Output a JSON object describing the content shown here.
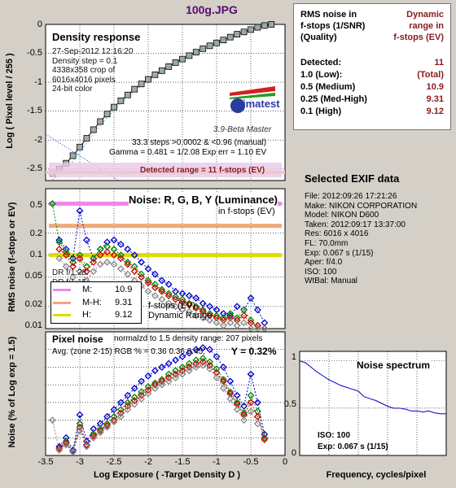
{
  "title": "100g.JPG",
  "density_panel": {
    "title": "Density response",
    "info": [
      "27-Sep-2012 12:16:20",
      "Density step = 0.1",
      "4338x358 crop of",
      "6016x4016 pixels",
      "24-bit color"
    ],
    "steps_line": "33.3 steps >0.0002 & <0.96 (manual)",
    "gamma_line": "Gamma = 0.481 = 1/2.08  Exp err = 1.10 EV",
    "detected_range": "Detected range = 11 f-stops (EV)",
    "logo_text": "imatest",
    "version": "3.9-Beta  Master",
    "ylabel": "Log ( Pixel level / 255 )",
    "yticks": [
      "0",
      "-0.5",
      "-1",
      "-1.5",
      "-2",
      "-2.5"
    ]
  },
  "noise_panel": {
    "title": "Noise: R, G, B, Y (Luminance)",
    "subtitle": "in f-stops (EV)",
    "ylabel": "RMS noise (f-stops or EV)",
    "yticks": [
      "0.5",
      "0.2",
      "0.1",
      "0.05",
      "0.02",
      "0.01"
    ],
    "dr_labels": [
      "DR f/1:28:",
      "DR f/1:15:"
    ],
    "legend": [
      {
        "label": "M:",
        "value": "10.9",
        "color": "#ee88ee"
      },
      {
        "label": "M-H:",
        "value": "9.31",
        "color": "#f0a878"
      },
      {
        "label": "H:",
        "value": "9.12",
        "color": "#dddd00"
      }
    ],
    "legend_caption": [
      "f-stops (EV)",
      "Dynamic Range"
    ]
  },
  "pixel_panel": {
    "title": "Pixel noise",
    "normalized": "normalzd to 1.5 density range: 207 pixels",
    "avg": "Avg. (zone 2-15) RGB % = 0.36  0.36  0.45;",
    "y_value": "Y = 0.32%",
    "ylabel": "Noise (% of Log exp = 1.5)",
    "xlabel": "Log Exposure ( -Target Density D )",
    "xticks": [
      "-3.5",
      "-3",
      "-2.5",
      "-2",
      "-1.5",
      "-1",
      "-0.5",
      "0"
    ]
  },
  "rms_table": {
    "header_left": [
      "RMS noise in",
      "f-stops (1/SNR)",
      "(Quality)"
    ],
    "header_right": [
      "Dynamic",
      "range in",
      "f-stops (EV)"
    ],
    "rows": [
      {
        "label": "Detected:",
        "value": "11"
      },
      {
        "label": "1.0   (Low):",
        "value": "(Total)"
      },
      {
        "label": "0.5   (Medium)",
        "value": "10.9"
      },
      {
        "label": "0.25 (Med-High)",
        "value": "9.31"
      },
      {
        "label": "0.1   (High)",
        "value": "9.12"
      }
    ]
  },
  "exif": {
    "title": "Selected EXIF data",
    "lines": [
      "File:  2012:09:26 17:21:26",
      "Make:  NIKON CORPORATION",
      "Model: NIKON D600",
      "Taken:  2012:09:17 13:37:00",
      "Res:    6016 x 4016",
      "FL:  70.0mm",
      "Exp:   0.067 s   (1/15)",
      "Aper:  f/4.0",
      "ISO:   100",
      "WtBal: Manual"
    ]
  },
  "spectrum": {
    "title": "Noise spectrum",
    "iso": "ISO:   100",
    "exp": "Exp:   0.067 s    (1/15)",
    "xlabel": "Frequency, cycles/pixel",
    "yticks": [
      "1",
      "0.5",
      "0"
    ]
  },
  "chart_data": [
    {
      "type": "line",
      "title": "Density response",
      "ylabel": "Log ( Pixel level / 255 )",
      "xlim": [
        -3.5,
        0
      ],
      "ylim": [
        -2.7,
        0
      ],
      "series": [
        {
          "x": [
            -3.4,
            -3.3,
            -3.2,
            -3.1,
            -3.0,
            -2.9,
            -2.8,
            -2.7,
            -2.6,
            -2.5,
            -2.4,
            -2.3,
            -2.2,
            -2.1,
            -2.0,
            -1.9,
            -1.8,
            -1.7,
            -1.6,
            -1.5,
            -1.4,
            -1.3,
            -1.2,
            -1.1,
            -1.0,
            -0.9,
            -0.8,
            -0.7,
            -0.6,
            -0.5,
            -0.4,
            -0.3,
            -0.2
          ],
          "y": [
            -2.58,
            -2.5,
            -2.4,
            -2.27,
            -2.12,
            -1.97,
            -1.82,
            -1.68,
            -1.55,
            -1.43,
            -1.32,
            -1.22,
            -1.12,
            -1.03,
            -0.95,
            -0.87,
            -0.8,
            -0.73,
            -0.66,
            -0.6,
            -0.54,
            -0.48,
            -0.42,
            -0.37,
            -0.32,
            -0.27,
            -0.22,
            -0.17,
            -0.13,
            -0.09,
            -0.05,
            -0.02,
            0.0
          ]
        }
      ]
    },
    {
      "type": "line",
      "title": "Noise: R, G, B, Y (Luminance)",
      "ylabel": "RMS noise (f-stops or EV)",
      "xlim": [
        -3.5,
        0
      ],
      "ylim": [
        0.01,
        0.8
      ],
      "yscale": "log",
      "series": [
        {
          "color": "#0000cc",
          "x": [
            -3.3,
            -3.2,
            -3.1,
            -3.0,
            -2.9,
            -2.8,
            -2.7,
            -2.6,
            -2.5,
            -2.4,
            -2.3,
            -2.2,
            -2.1,
            -2.0,
            -1.9,
            -1.8,
            -1.7,
            -1.6,
            -1.5,
            -1.4,
            -1.3,
            -1.2,
            -1.1,
            -1.0,
            -0.9,
            -0.8,
            -0.7,
            -0.6,
            -0.5,
            -0.4,
            -0.3
          ],
          "y": [
            0.16,
            0.12,
            0.09,
            0.4,
            0.16,
            0.09,
            0.12,
            0.15,
            0.16,
            0.14,
            0.12,
            0.1,
            0.08,
            0.065,
            0.055,
            0.045,
            0.04,
            0.032,
            0.03,
            0.028,
            0.026,
            0.022,
            0.02,
            0.018,
            0.016,
            0.015,
            0.02,
            0.018,
            0.026,
            0.018,
            0.012
          ]
        },
        {
          "color": "#008800",
          "x": [
            -3.4,
            -3.3,
            -3.2,
            -3.1,
            -3.0,
            -2.9,
            -2.8,
            -2.7,
            -2.6,
            -2.5,
            -2.4,
            -2.3,
            -2.2,
            -2.1,
            -2.0,
            -1.9,
            -1.8,
            -1.7,
            -1.6,
            -1.5,
            -1.4,
            -1.3,
            -1.2,
            -1.1,
            -1.0,
            -0.9,
            -0.8,
            -0.7,
            -0.6,
            -0.5,
            -0.4,
            -0.3
          ],
          "y": [
            0.5,
            0.15,
            0.11,
            0.08,
            0.1,
            0.07,
            0.09,
            0.12,
            0.13,
            0.12,
            0.1,
            0.08,
            0.07,
            0.055,
            0.045,
            0.04,
            0.034,
            0.03,
            0.027,
            0.025,
            0.022,
            0.02,
            0.018,
            0.016,
            0.015,
            0.014,
            0.016,
            0.014,
            0.018,
            0.013,
            0.011,
            0.01
          ]
        },
        {
          "color": "#cc0000",
          "x": [
            -3.3,
            -3.2,
            -3.1,
            -3.0,
            -2.9,
            -2.8,
            -2.7,
            -2.6,
            -2.5,
            -2.4,
            -2.3,
            -2.2,
            -2.1,
            -2.0,
            -1.9,
            -1.8,
            -1.7,
            -1.6,
            -1.5,
            -1.4,
            -1.3,
            -1.2,
            -1.1,
            -1.0,
            -0.9,
            -0.8,
            -0.7,
            -0.6,
            -0.5,
            -0.4,
            -0.3
          ],
          "y": [
            0.12,
            0.1,
            0.07,
            0.09,
            0.06,
            0.08,
            0.1,
            0.11,
            0.1,
            0.09,
            0.075,
            0.06,
            0.05,
            0.042,
            0.036,
            0.032,
            0.028,
            0.025,
            0.023,
            0.021,
            0.019,
            0.017,
            0.015,
            0.014,
            0.013,
            0.014,
            0.013,
            0.015,
            0.012,
            0.011,
            0.01
          ]
        },
        {
          "color": "#888888",
          "x": [
            -3.3,
            -3.2,
            -3.1,
            -3.0,
            -2.9,
            -2.8,
            -2.7,
            -2.6,
            -2.5,
            -2.4,
            -2.3,
            -2.2,
            -2.1,
            -2.0,
            -1.9,
            -1.8,
            -1.7,
            -1.6,
            -1.5,
            -1.4,
            -1.3,
            -1.2,
            -1.1,
            -1.0,
            -0.9,
            -0.8,
            -0.7,
            -0.6,
            -0.5,
            -0.4,
            -0.3
          ],
          "y": [
            0.09,
            0.07,
            0.05,
            0.06,
            0.045,
            0.06,
            0.075,
            0.08,
            0.075,
            0.065,
            0.055,
            0.045,
            0.038,
            0.032,
            0.028,
            0.025,
            0.022,
            0.02,
            0.018,
            0.017,
            0.015,
            0.014,
            0.013,
            0.012,
            0.011,
            0.012,
            0.011,
            0.012,
            0.01,
            0.01,
            0.01
          ]
        }
      ],
      "reference_lines": [
        {
          "y": 0.5,
          "color": "#ee88ee"
        },
        {
          "y": 0.25,
          "color": "#f0a878"
        },
        {
          "y": 0.1,
          "color": "#dddd00"
        }
      ]
    },
    {
      "type": "line",
      "title": "Pixel noise",
      "xlabel": "Log Exposure ( -Target Density D )",
      "ylabel": "Noise (% of Log exp = 1.5)",
      "xlim": [
        -3.5,
        0
      ],
      "ylim": [
        0,
        0.7
      ],
      "series": [
        {
          "color": "#0000cc",
          "x": [
            -3.3,
            -3.2,
            -3.1,
            -3.0,
            -2.9,
            -2.8,
            -2.7,
            -2.6,
            -2.5,
            -2.4,
            -2.3,
            -2.2,
            -2.1,
            -2.0,
            -1.9,
            -1.8,
            -1.7,
            -1.6,
            -1.5,
            -1.4,
            -1.3,
            -1.2,
            -1.1,
            -1.0,
            -0.9,
            -0.8,
            -0.7,
            -0.6,
            -0.5,
            -0.4,
            -0.3
          ],
          "y": [
            0.05,
            0.1,
            0.03,
            0.23,
            0.08,
            0.15,
            0.18,
            0.22,
            0.26,
            0.3,
            0.34,
            0.38,
            0.42,
            0.45,
            0.48,
            0.5,
            0.52,
            0.54,
            0.56,
            0.58,
            0.6,
            0.61,
            0.6,
            0.56,
            0.5,
            0.42,
            0.34,
            0.28,
            0.46,
            0.3,
            0.12
          ]
        },
        {
          "color": "#008800",
          "x": [
            -3.3,
            -3.2,
            -3.1,
            -3.0,
            -2.9,
            -2.8,
            -2.7,
            -2.6,
            -2.5,
            -2.4,
            -2.3,
            -2.2,
            -2.1,
            -2.0,
            -1.9,
            -1.8,
            -1.7,
            -1.6,
            -1.5,
            -1.4,
            -1.3,
            -1.2,
            -1.1,
            -1.0,
            -0.9,
            -0.8,
            -0.7,
            -0.6,
            -0.5,
            -0.4,
            -0.3
          ],
          "y": [
            0.04,
            0.08,
            0.02,
            0.18,
            0.06,
            0.12,
            0.15,
            0.18,
            0.22,
            0.26,
            0.3,
            0.33,
            0.36,
            0.39,
            0.41,
            0.43,
            0.46,
            0.48,
            0.5,
            0.52,
            0.54,
            0.55,
            0.53,
            0.49,
            0.43,
            0.36,
            0.3,
            0.24,
            0.34,
            0.25,
            0.1
          ]
        },
        {
          "color": "#cc0000",
          "x": [
            -3.3,
            -3.2,
            -3.1,
            -3.0,
            -2.9,
            -2.8,
            -2.7,
            -2.6,
            -2.5,
            -2.4,
            -2.3,
            -2.2,
            -2.1,
            -2.0,
            -1.9,
            -1.8,
            -1.7,
            -1.6,
            -1.5,
            -1.4,
            -1.3,
            -1.2,
            -1.1,
            -1.0,
            -0.9,
            -0.8,
            -0.7,
            -0.6,
            -0.5,
            -0.4,
            -0.3
          ],
          "y": [
            0.04,
            0.07,
            0.02,
            0.16,
            0.06,
            0.11,
            0.14,
            0.17,
            0.2,
            0.24,
            0.28,
            0.31,
            0.34,
            0.37,
            0.4,
            0.42,
            0.44,
            0.46,
            0.48,
            0.5,
            0.52,
            0.53,
            0.51,
            0.47,
            0.42,
            0.35,
            0.29,
            0.23,
            0.3,
            0.22,
            0.09
          ]
        },
        {
          "color": "#888888",
          "x": [
            -3.4,
            -3.3,
            -3.2,
            -3.1,
            -3.0,
            -2.9,
            -2.8,
            -2.7,
            -2.6,
            -2.5,
            -2.4,
            -2.3,
            -2.2,
            -2.1,
            -2.0,
            -1.9,
            -1.8,
            -1.7,
            -1.6,
            -1.5,
            -1.4,
            -1.3,
            -1.2,
            -1.1,
            -1.0,
            -0.9,
            -0.8,
            -0.7,
            -0.6,
            -0.5,
            -0.4
          ],
          "y": [
            0.2,
            0.03,
            0.06,
            0.02,
            0.14,
            0.05,
            0.1,
            0.13,
            0.16,
            0.19,
            0.22,
            0.26,
            0.29,
            0.32,
            0.35,
            0.38,
            0.4,
            0.42,
            0.44,
            0.46,
            0.48,
            0.5,
            0.51,
            0.49,
            0.44,
            0.38,
            0.32,
            0.26,
            0.2,
            0.25,
            0.18
          ]
        }
      ]
    },
    {
      "type": "line",
      "title": "Noise spectrum",
      "xlabel": "Frequency, cycles/pixel",
      "xlim": [
        0,
        0.5
      ],
      "ylim": [
        0,
        1.1
      ],
      "series": [
        {
          "x": [
            0,
            0.02,
            0.04,
            0.06,
            0.08,
            0.1,
            0.12,
            0.14,
            0.16,
            0.18,
            0.2,
            0.22,
            0.24,
            0.26,
            0.28,
            0.3,
            0.32,
            0.34,
            0.36,
            0.38,
            0.4,
            0.42,
            0.44,
            0.46,
            0.48,
            0.5
          ],
          "y": [
            1.0,
            0.98,
            0.93,
            0.88,
            0.84,
            0.8,
            0.77,
            0.74,
            0.72,
            0.7,
            0.68,
            0.62,
            0.6,
            0.58,
            0.55,
            0.52,
            0.5,
            0.5,
            0.49,
            0.47,
            0.47,
            0.46,
            0.47,
            0.45,
            0.44,
            0.44
          ]
        }
      ]
    }
  ]
}
